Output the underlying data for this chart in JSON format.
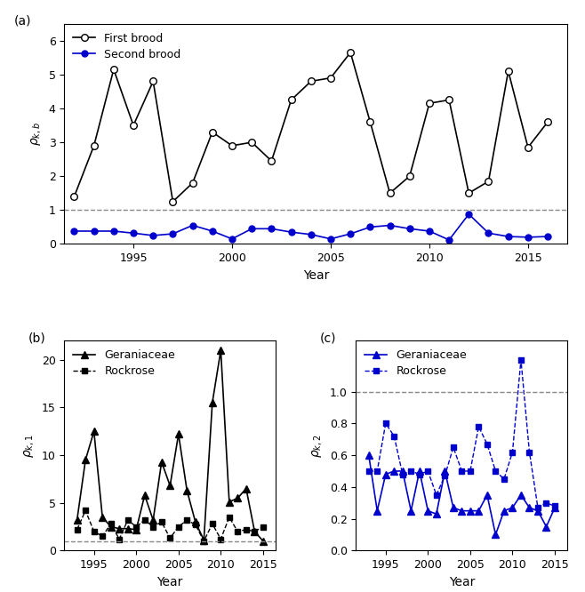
{
  "panel_a": {
    "years_first": [
      1992,
      1993,
      1994,
      1995,
      1996,
      1997,
      1998,
      1999,
      2000,
      2001,
      2002,
      2003,
      2004,
      2005,
      2006,
      2007,
      2008,
      2009,
      2010,
      2011,
      2012,
      2013,
      2014,
      2015,
      2016
    ],
    "first_brood": [
      1.4,
      2.9,
      5.15,
      3.5,
      4.8,
      1.25,
      1.8,
      3.3,
      2.9,
      3.0,
      2.45,
      4.25,
      4.8,
      4.9,
      5.65,
      3.6,
      1.5,
      2.0,
      4.15,
      4.25,
      1.5,
      1.85,
      5.1,
      2.85,
      3.6
    ],
    "years_second": [
      1992,
      1993,
      1994,
      1995,
      1996,
      1997,
      1998,
      1999,
      2000,
      2001,
      2002,
      2003,
      2004,
      2005,
      2006,
      2007,
      2008,
      2009,
      2010,
      2011,
      2012,
      2013,
      2014,
      2015,
      2016
    ],
    "second_brood": [
      0.38,
      0.38,
      0.38,
      0.32,
      0.25,
      0.3,
      0.55,
      0.38,
      0.15,
      0.45,
      0.45,
      0.35,
      0.28,
      0.15,
      0.3,
      0.5,
      0.55,
      0.45,
      0.38,
      0.12,
      0.88,
      0.32,
      0.22,
      0.2,
      0.22
    ],
    "ylabel": "$\\rho_{k,b}$",
    "xlabel": "Year",
    "ylim": [
      0,
      6.5
    ],
    "yticks": [
      0,
      1,
      2,
      3,
      4,
      5,
      6
    ],
    "xticks": [
      1995,
      2000,
      2005,
      2010,
      2015
    ],
    "xlim": [
      1991.5,
      2017.0
    ],
    "dashed_y": 1.0,
    "first_color": "#000000",
    "second_color": "#0000cc",
    "label_first": "First brood",
    "label_second": "Second brood"
  },
  "panel_b": {
    "years_gera": [
      1993,
      1994,
      1995,
      1996,
      1997,
      1998,
      1999,
      2000,
      2001,
      2002,
      2003,
      2004,
      2005,
      2006,
      2007,
      2008,
      2009,
      2010,
      2011,
      2012,
      2013,
      2014,
      2015
    ],
    "gera_values": [
      3.2,
      9.5,
      12.5,
      3.5,
      2.5,
      2.3,
      2.3,
      2.2,
      5.8,
      3.2,
      9.3,
      6.8,
      12.2,
      6.3,
      3.0,
      1.1,
      15.5,
      21.0,
      5.1,
      5.5,
      6.5,
      2.0,
      1.0
    ],
    "years_rock": [
      1993,
      1994,
      1995,
      1996,
      1997,
      1998,
      1999,
      2000,
      2001,
      2002,
      2003,
      2004,
      2005,
      2006,
      2007,
      2008,
      2009,
      2010,
      2011,
      2012,
      2013,
      2014,
      2015
    ],
    "rock_values": [
      2.2,
      4.2,
      2.0,
      1.5,
      2.8,
      1.2,
      3.2,
      2.5,
      3.2,
      2.5,
      3.0,
      1.3,
      2.5,
      3.2,
      2.7,
      1.0,
      2.8,
      1.2,
      3.5,
      2.0,
      2.2,
      2.0,
      2.5
    ],
    "ylabel": "$\\rho_{k,1}$",
    "xlabel": "Year",
    "ylim": [
      0,
      22
    ],
    "yticks": [
      0,
      5,
      10,
      15,
      20
    ],
    "xticks": [
      1995,
      2000,
      2005,
      2010,
      2015
    ],
    "xlim": [
      1991.5,
      2016.5
    ],
    "dashed_y": 1.0,
    "gera_color": "#000000",
    "rock_color": "#000000",
    "label_gera": "Geraniaceae",
    "label_rock": "Rockrose"
  },
  "panel_c": {
    "years_gera": [
      1993,
      1994,
      1995,
      1996,
      1997,
      1998,
      1999,
      2000,
      2001,
      2002,
      2003,
      2004,
      2005,
      2006,
      2007,
      2008,
      2009,
      2010,
      2011,
      2012,
      2013,
      2014,
      2015
    ],
    "gera_values": [
      0.6,
      0.25,
      0.48,
      0.5,
      0.5,
      0.25,
      0.5,
      0.25,
      0.23,
      0.5,
      0.27,
      0.25,
      0.25,
      0.25,
      0.35,
      0.1,
      0.25,
      0.27,
      0.35,
      0.27,
      0.25,
      0.15,
      0.27
    ],
    "years_rock": [
      1993,
      1994,
      1995,
      1996,
      1997,
      1998,
      1999,
      2000,
      2001,
      2002,
      2003,
      2004,
      2005,
      2006,
      2007,
      2008,
      2009,
      2010,
      2011,
      2012,
      2013,
      2014,
      2015
    ],
    "rock_values": [
      0.5,
      0.5,
      0.8,
      0.72,
      0.48,
      0.5,
      0.48,
      0.5,
      0.35,
      0.47,
      0.65,
      0.5,
      0.5,
      0.78,
      0.67,
      0.5,
      0.45,
      0.62,
      1.2,
      0.62,
      0.27,
      0.3,
      0.28
    ],
    "ylabel": "$\\rho_{k,2}$",
    "xlabel": "Year",
    "ylim": [
      0,
      1.32
    ],
    "yticks": [
      0.0,
      0.2,
      0.4,
      0.6,
      0.8,
      1.0
    ],
    "xticks": [
      1995,
      2000,
      2005,
      2010,
      2015
    ],
    "xlim": [
      1991.5,
      2016.5
    ],
    "dashed_y": 1.0,
    "gera_color": "#0000cc",
    "rock_color": "#0000cc",
    "label_gera": "Geraniaceae",
    "label_rock": "Rockrose"
  }
}
